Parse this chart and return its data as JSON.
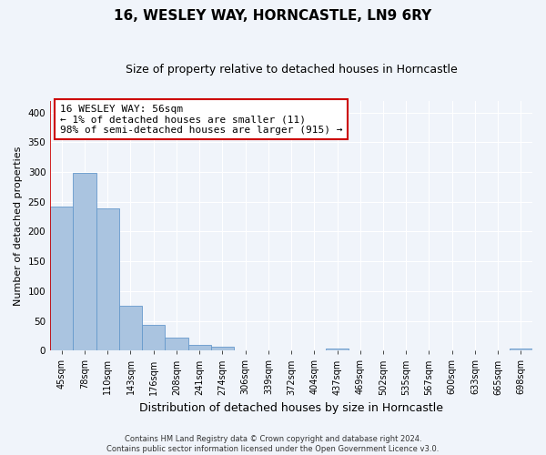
{
  "title": "16, WESLEY WAY, HORNCASTLE, LN9 6RY",
  "subtitle": "Size of property relative to detached houses in Horncastle",
  "xlabel": "Distribution of detached houses by size in Horncastle",
  "ylabel": "Number of detached properties",
  "bar_labels": [
    "45sqm",
    "78sqm",
    "110sqm",
    "143sqm",
    "176sqm",
    "208sqm",
    "241sqm",
    "274sqm",
    "306sqm",
    "339sqm",
    "372sqm",
    "404sqm",
    "437sqm",
    "469sqm",
    "502sqm",
    "535sqm",
    "567sqm",
    "600sqm",
    "633sqm",
    "665sqm",
    "698sqm"
  ],
  "bar_values": [
    242,
    298,
    239,
    76,
    43,
    22,
    10,
    6,
    0,
    0,
    0,
    0,
    4,
    0,
    0,
    0,
    0,
    0,
    0,
    0,
    4
  ],
  "bar_color": "#aac4e0",
  "bar_edgecolor": "#6699cc",
  "ylim": [
    0,
    420
  ],
  "yticks": [
    0,
    50,
    100,
    150,
    200,
    250,
    300,
    350,
    400
  ],
  "property_line_color": "#cc0000",
  "annotation_line1": "16 WESLEY WAY: 56sqm",
  "annotation_line2": "← 1% of detached houses are smaller (11)",
  "annotation_line3": "98% of semi-detached houses are larger (915) →",
  "annotation_box_color": "#cc0000",
  "footer_line1": "Contains HM Land Registry data © Crown copyright and database right 2024.",
  "footer_line2": "Contains public sector information licensed under the Open Government Licence v3.0.",
  "background_color": "#f0f4fa",
  "grid_color": "#ffffff",
  "title_fontsize": 11,
  "subtitle_fontsize": 9,
  "ylabel_fontsize": 8,
  "xlabel_fontsize": 9,
  "tick_fontsize": 7.5,
  "footer_fontsize": 6,
  "annot_fontsize": 8
}
